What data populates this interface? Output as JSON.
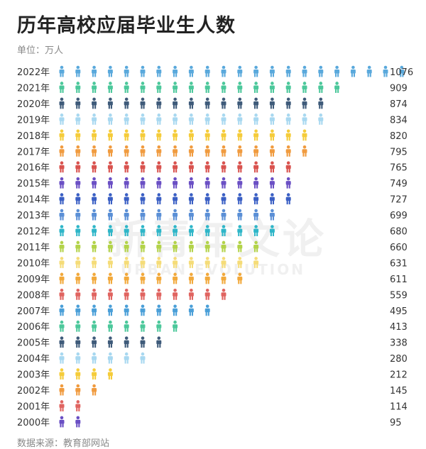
{
  "header": {
    "title": "历年高校应届毕业生人数",
    "unit": "单位：万人"
  },
  "footer": {
    "source": "数据来源：教育部网站"
  },
  "watermark": {
    "cn": "新青年文论",
    "en": "URBAN EVOLUTION"
  },
  "chart_data": {
    "type": "bar",
    "title": "历年高校应届毕业生人数",
    "unit": "单位：万人",
    "orientation": "horizontal-pictogram",
    "icon_unit": 50,
    "categories": [
      "2022年",
      "2021年",
      "2020年",
      "2019年",
      "2018年",
      "2017年",
      "2016年",
      "2015年",
      "2014年",
      "2013年",
      "2012年",
      "2011年",
      "2010年",
      "2009年",
      "2008年",
      "2007年",
      "2006年",
      "2005年",
      "2004年",
      "2003年",
      "2002年",
      "2001年",
      "2000年"
    ],
    "values": [
      1076,
      909,
      874,
      834,
      820,
      795,
      765,
      749,
      727,
      699,
      680,
      660,
      631,
      611,
      559,
      495,
      413,
      338,
      280,
      212,
      145,
      114,
      95
    ],
    "colors": [
      "#5aa9dc",
      "#4cc89b",
      "#3f5b7a",
      "#a8d8f0",
      "#f5cc3a",
      "#f09b3f",
      "#d9534f",
      "#6a4fc4",
      "#3a5fc4",
      "#5a8fd6",
      "#2fb6c8",
      "#b3d34a",
      "#f5dc78",
      "#f2a93b",
      "#e06460",
      "#4a9fd8",
      "#4cc89b",
      "#3f5b7a",
      "#a8d8f0",
      "#f5cc3a",
      "#f09b3f",
      "#e06460",
      "#6a4fc4"
    ]
  }
}
